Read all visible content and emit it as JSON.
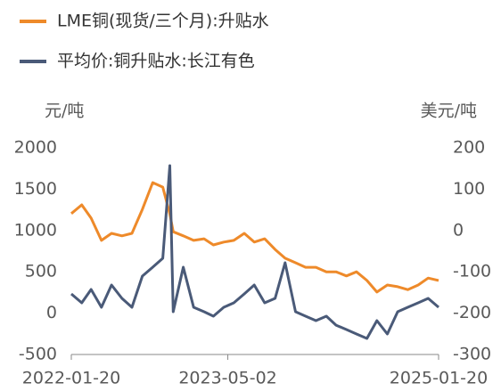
{
  "chart_data": {
    "type": "line",
    "y_label": "元/吨",
    "y2_label": "美元/吨",
    "x": [
      "2022-01-20",
      "2022-02-20",
      "2022-03-20",
      "2022-04-20",
      "2022-05-20",
      "2022-06-20",
      "2022-07-20",
      "2022-08-20",
      "2022-09-20",
      "2022-10-20",
      "2022-11-10",
      "2022-11-20",
      "2022-12-20",
      "2023-01-20",
      "2023-02-20",
      "2023-03-20",
      "2023-04-20",
      "2023-05-20",
      "2023-06-20",
      "2023-07-20",
      "2023-08-20",
      "2023-09-20",
      "2023-10-20",
      "2023-11-20",
      "2023-12-20",
      "2024-01-20",
      "2024-02-20",
      "2024-03-20",
      "2024-04-20",
      "2024-05-20",
      "2024-06-20",
      "2024-07-20",
      "2024-08-20",
      "2024-09-20",
      "2024-10-20",
      "2024-11-20",
      "2024-12-20",
      "2025-01-20"
    ],
    "series": [
      {
        "name": "LME铜(现货/三个月):升贴水",
        "color": "#ee8a2a",
        "axis": "y2",
        "values": [
          41,
          62,
          30,
          -24,
          -7,
          -13,
          -7,
          51,
          116,
          105,
          40,
          -3,
          -13,
          -24,
          -20,
          -35,
          -28,
          -24,
          -7,
          -28,
          -20,
          -46,
          -67,
          -78,
          -89,
          -89,
          -100,
          -100,
          -110,
          -100,
          -121,
          -149,
          -132,
          -136,
          -143,
          -132,
          -115,
          -121
        ]
      },
      {
        "name": "平均价:铜升贴水:长江有色",
        "color": "#4a5a78",
        "axis": "y",
        "values": [
          233,
          125,
          287,
          71,
          340,
          179,
          71,
          448,
          556,
          664,
          1785,
          17,
          556,
          71,
          17,
          -37,
          71,
          125,
          233,
          340,
          125,
          179,
          610,
          17,
          -37,
          -91,
          -37,
          -145,
          -198,
          -252,
          -306,
          -91,
          -252,
          17,
          71,
          125,
          179,
          71
        ]
      }
    ],
    "xlim": [
      "2022-01-20",
      "2025-01-20"
    ],
    "xticks": [
      "2022-01-20",
      "2023-05-02",
      "2025-01-20"
    ],
    "ylim": [
      -500,
      2000
    ],
    "yticks": [
      2000,
      1500,
      1000,
      500,
      0,
      -500
    ],
    "y2lim": [
      -300,
      200
    ],
    "y2ticks": [
      200,
      100,
      0,
      -100,
      -200,
      -300
    ]
  }
}
